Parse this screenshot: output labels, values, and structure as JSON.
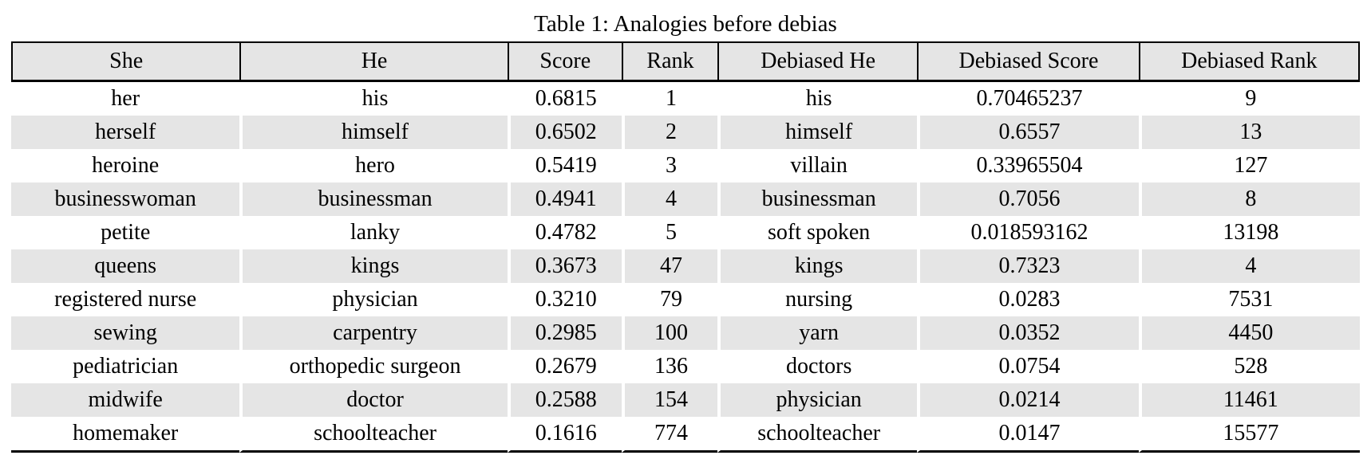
{
  "table": {
    "caption": "Table 1: Analogies before debias",
    "columns": [
      "She",
      "He",
      "Score",
      "Rank",
      "Debiased He",
      "Debiased Score",
      "Debiased Rank"
    ],
    "rows": [
      [
        "her",
        "his",
        "0.6815",
        "1",
        "his",
        "0.70465237",
        "9"
      ],
      [
        "herself",
        "himself",
        "0.6502",
        "2",
        "himself",
        "0.6557",
        "13"
      ],
      [
        "heroine",
        "hero",
        "0.5419",
        "3",
        "villain",
        "0.33965504",
        "127"
      ],
      [
        "businesswoman",
        "businessman",
        "0.4941",
        "4",
        "businessman",
        "0.7056",
        "8"
      ],
      [
        "petite",
        "lanky",
        "0.4782",
        "5",
        "soft spoken",
        "0.018593162",
        "13198"
      ],
      [
        "queens",
        "kings",
        "0.3673",
        "47",
        "kings",
        "0.7323",
        "4"
      ],
      [
        "registered nurse",
        "physician",
        "0.3210",
        "79",
        "nursing",
        "0.0283",
        "7531"
      ],
      [
        "sewing",
        "carpentry",
        "0.2985",
        "100",
        "yarn",
        "0.0352",
        "4450"
      ],
      [
        "pediatrician",
        "orthopedic surgeon",
        "0.2679",
        "136",
        "doctors",
        "0.0754",
        "528"
      ],
      [
        "midwife",
        "doctor",
        "0.2588",
        "154",
        "physician",
        "0.0214",
        "11461"
      ],
      [
        "homemaker",
        "schoolteacher",
        "0.1616",
        "774",
        "schoolteacher",
        "0.0147",
        "15577"
      ]
    ]
  },
  "colors": {
    "stripe": "#e5e5e5",
    "header_bg": "#e5e5e5",
    "rule": "#000000",
    "text": "#000000"
  }
}
